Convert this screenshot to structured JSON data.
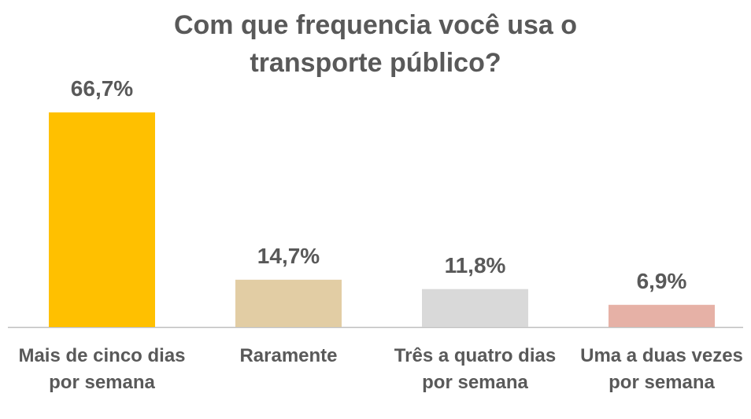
{
  "chart_data": {
    "type": "bar",
    "title": "Com que frequencia você usa o transporte público?",
    "categories": [
      "Mais de cinco dias por semana",
      "Raramente",
      "Três a quatro dias por semana",
      "Uma a duas vezes por semana"
    ],
    "values": [
      66.7,
      14.7,
      11.8,
      6.9
    ],
    "value_labels": [
      "66,7%",
      "14,7%",
      "11,8%",
      "6,9%"
    ],
    "colors": [
      "#FFC000",
      "#E2CDA4",
      "#D9D9D9",
      "#E6B1A6"
    ]
  }
}
